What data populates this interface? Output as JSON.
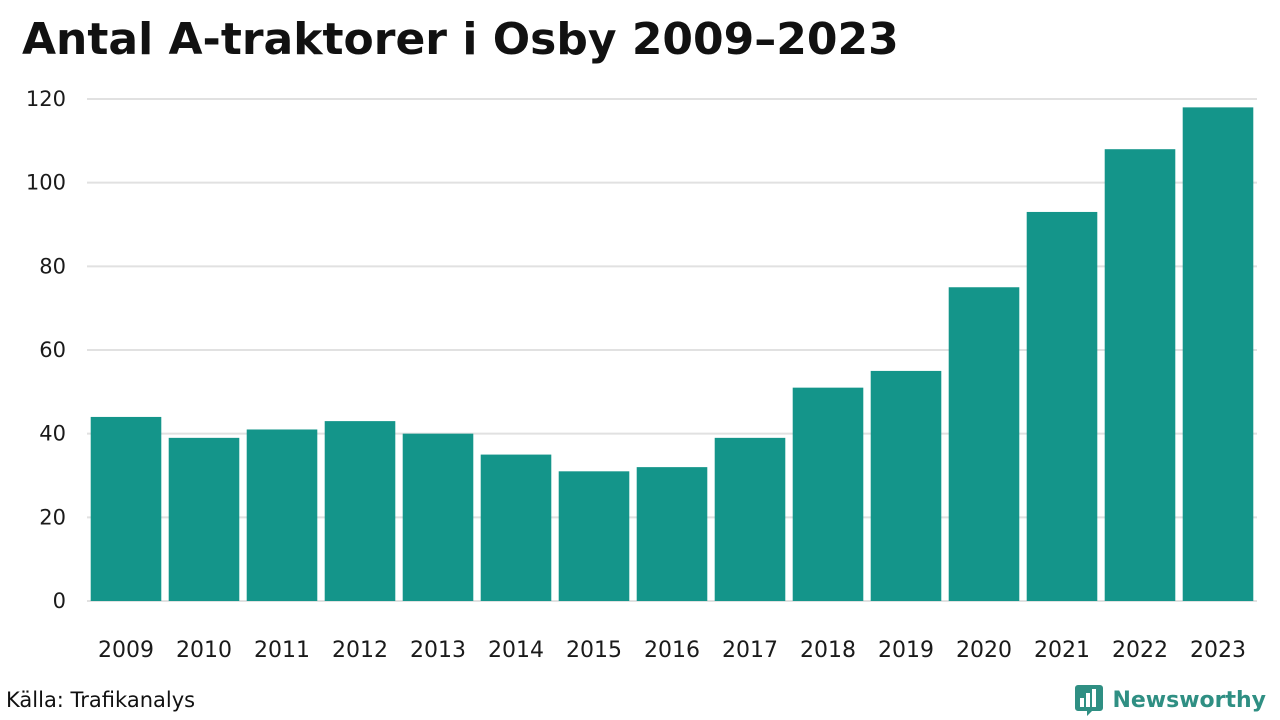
{
  "colors": {
    "bar": "#14958a",
    "grid": "#e1e1e1",
    "brand": "#2f8f83"
  },
  "chart_data": {
    "type": "bar",
    "title": "Antal A-traktorer i Osby 2009–2023",
    "xlabel": "",
    "ylabel": "",
    "categories": [
      "2009",
      "2010",
      "2011",
      "2012",
      "2013",
      "2014",
      "2015",
      "2016",
      "2017",
      "2018",
      "2019",
      "2020",
      "2021",
      "2022",
      "2023"
    ],
    "values": [
      44,
      39,
      41,
      43,
      40,
      35,
      31,
      32,
      39,
      51,
      55,
      75,
      93,
      108,
      118
    ],
    "ylim": [
      0,
      120
    ],
    "yticks": [
      "0",
      "20",
      "40",
      "60",
      "80",
      "100",
      "120"
    ],
    "grid": true,
    "legend": "none"
  },
  "footer": {
    "source": "Källa: Trafikanalys",
    "brand_name": "Newsworthy",
    "brand_icon": "bar-chart-icon"
  }
}
